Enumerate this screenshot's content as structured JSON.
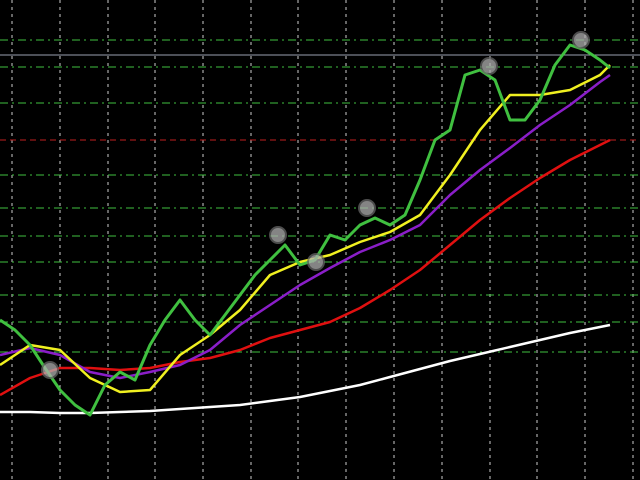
{
  "chart_data": {
    "type": "line",
    "xlim": [
      0,
      640
    ],
    "ylim": [
      0,
      480
    ],
    "xticks": [
      12,
      60,
      108,
      155,
      203,
      251,
      298,
      346,
      394,
      442,
      490,
      537,
      585,
      633
    ],
    "yticks": [
      440,
      413,
      377,
      305,
      272,
      244,
      218,
      185,
      158,
      128
    ],
    "grid": true,
    "grid_color": "#ffffff",
    "ygrid_color": "#3fbf3f",
    "levels": [
      {
        "value": 340,
        "color": "#c02020"
      },
      {
        "value": 425,
        "color": "#9aa0b0"
      }
    ],
    "series": [
      {
        "color": "#ffffff",
        "x": [
          0,
          30,
          60,
          90,
          120,
          150,
          180,
          210,
          240,
          270,
          300,
          330,
          360,
          390,
          420,
          450,
          480,
          510,
          540,
          570,
          600,
          610
        ],
        "values": [
          68,
          68,
          67,
          67,
          68,
          69,
          71,
          73,
          75,
          79,
          83,
          89,
          95,
          103,
          111,
          119,
          126,
          133,
          140,
          147,
          153,
          155
        ]
      },
      {
        "color": "#e01010",
        "x": [
          0,
          30,
          60,
          90,
          120,
          150,
          180,
          210,
          240,
          270,
          300,
          330,
          360,
          390,
          420,
          450,
          480,
          510,
          540,
          570,
          600,
          610
        ],
        "values": [
          85,
          102,
          112,
          112,
          110,
          112,
          118,
          122,
          130,
          142,
          150,
          158,
          172,
          190,
          210,
          235,
          260,
          282,
          302,
          320,
          335,
          340
        ]
      },
      {
        "color": "#8a1ec8",
        "x": [
          0,
          30,
          60,
          90,
          120,
          150,
          180,
          210,
          240,
          270,
          300,
          330,
          360,
          390,
          420,
          450,
          480,
          510,
          540,
          570,
          600,
          610
        ],
        "values": [
          125,
          132,
          125,
          108,
          102,
          108,
          115,
          130,
          155,
          175,
          195,
          212,
          228,
          240,
          255,
          285,
          310,
          332,
          355,
          375,
          398,
          405
        ]
      },
      {
        "color": "#f0f020",
        "x": [
          0,
          30,
          60,
          90,
          120,
          150,
          180,
          210,
          240,
          270,
          300,
          330,
          360,
          390,
          420,
          450,
          480,
          510,
          540,
          570,
          600,
          610
        ],
        "values": [
          115,
          135,
          130,
          102,
          88,
          90,
          125,
          145,
          170,
          205,
          218,
          225,
          238,
          248,
          265,
          305,
          350,
          385,
          385,
          390,
          405,
          415
        ]
      },
      {
        "color": "#40c040",
        "x": [
          0,
          15,
          30,
          45,
          60,
          75,
          90,
          105,
          120,
          135,
          150,
          165,
          180,
          195,
          210,
          225,
          240,
          255,
          270,
          285,
          300,
          315,
          330,
          345,
          360,
          375,
          390,
          405,
          420,
          435,
          450,
          465,
          480,
          495,
          510,
          525,
          540,
          555,
          570,
          585,
          600,
          610
        ],
        "values": [
          160,
          150,
          135,
          112,
          90,
          75,
          65,
          95,
          108,
          100,
          135,
          160,
          180,
          160,
          145,
          165,
          185,
          205,
          220,
          235,
          215,
          220,
          245,
          240,
          255,
          262,
          255,
          265,
          300,
          340,
          350,
          405,
          410,
          400,
          360,
          360,
          380,
          415,
          435,
          430,
          420,
          412
        ]
      }
    ],
    "markers": {
      "color": "#b0b0b0",
      "x": [
        50,
        278,
        316,
        367,
        489,
        581
      ],
      "values": [
        110,
        245,
        218,
        272,
        414,
        440
      ]
    }
  }
}
